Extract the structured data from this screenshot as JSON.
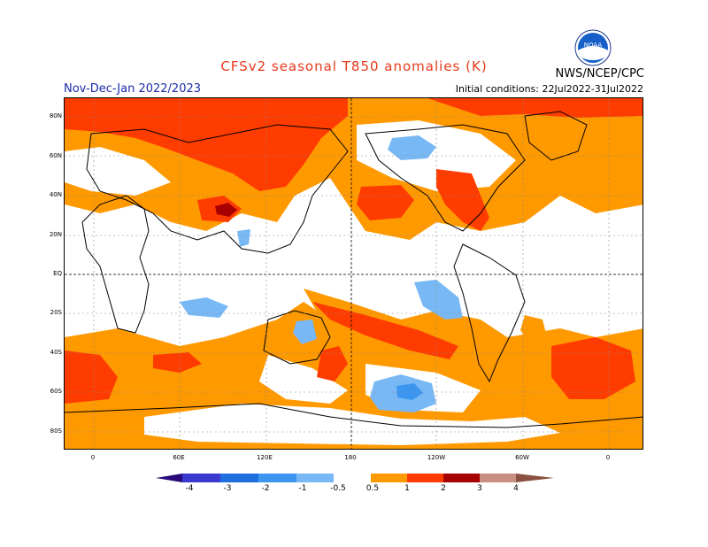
{
  "title": "CFSv2 seasonal T850 anomalies (K)",
  "period": "Nov-Dec-Jan 2022/2023",
  "agency": "NWS/NCEP/CPC",
  "initial_conditions": "Initial conditions: 22Jul2022-31Jul2022",
  "logo": {
    "icon": "noaa-logo-icon",
    "text": "NOAA"
  },
  "lat_labels": [
    "80N",
    "60N",
    "40N",
    "20N",
    "EQ",
    "20S",
    "40S",
    "60S",
    "80S"
  ],
  "lon_labels": [
    "0",
    "60E",
    "120E",
    "180",
    "120W",
    "60W",
    "0"
  ],
  "colorbar": {
    "labels": [
      "-4",
      "-3",
      "-2",
      "-1",
      "-0.5",
      "0.5",
      "1",
      "2",
      "3",
      "4"
    ],
    "colors": {
      "lt_minus4": "#2a0a7a",
      "minus4_minus3": "#3a3ad0",
      "minus3_minus2": "#1e6ee0",
      "minus2_minus1": "#3c96f0",
      "minus1_minus05": "#78b8f4",
      "neutral": "#ffffff",
      "p05_1": "#ff9900",
      "p1_2": "#ff3c00",
      "p2_3": "#a80000",
      "p3_4": "#c89080",
      "gt4": "#8a5040"
    }
  }
}
